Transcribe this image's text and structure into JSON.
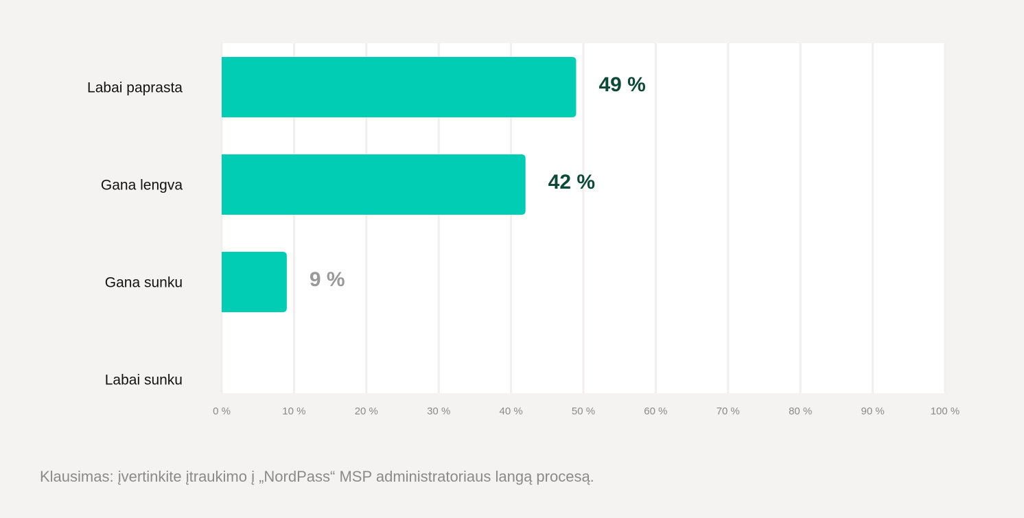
{
  "chart_data": {
    "type": "hbar",
    "categories": [
      "Labai paprasta",
      "Gana lengva",
      "Gana sunku",
      "Labai sunku"
    ],
    "values": [
      49,
      42,
      9,
      0
    ],
    "value_labels": [
      "49 %",
      "42 %",
      "9 %",
      null
    ],
    "value_label_colors": [
      "#0c4a37",
      "#0c4a37",
      "#999999",
      null
    ],
    "color": "#00cdb4",
    "xlim": [
      0,
      100
    ],
    "xticks": [
      {
        "value": 0,
        "label": "0 %"
      },
      {
        "value": 10,
        "label": "10 %"
      },
      {
        "value": 20,
        "label": "20 %"
      },
      {
        "value": 30,
        "label": "30 %"
      },
      {
        "value": 40,
        "label": "40 %"
      },
      {
        "value": 50,
        "label": "50 %"
      },
      {
        "value": 60,
        "label": "60 %"
      },
      {
        "value": 70,
        "label": "70 %"
      },
      {
        "value": 80,
        "label": "80 %"
      },
      {
        "value": 90,
        "label": "90 %"
      },
      {
        "value": 100,
        "label": "100 %"
      }
    ],
    "grid": true,
    "caption": "Klausimas: įvertinkite įtraukimo į „NordPass“ MSP administratoriaus langą procesą."
  }
}
